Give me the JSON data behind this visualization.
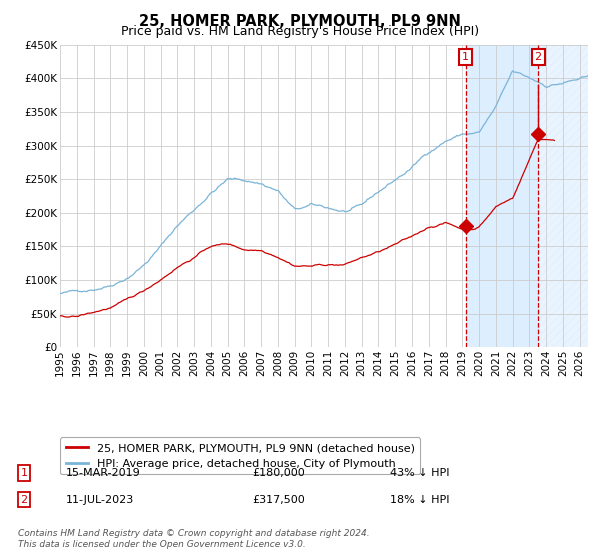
{
  "title": "25, HOMER PARK, PLYMOUTH, PL9 9NN",
  "subtitle": "Price paid vs. HM Land Registry's House Price Index (HPI)",
  "ylim": [
    0,
    450000
  ],
  "yticks": [
    0,
    50000,
    100000,
    150000,
    200000,
    250000,
    300000,
    350000,
    400000,
    450000
  ],
  "ytick_labels": [
    "£0",
    "£50K",
    "£100K",
    "£150K",
    "£200K",
    "£250K",
    "£300K",
    "£350K",
    "£400K",
    "£450K"
  ],
  "xlim_start": 1995.0,
  "xlim_end": 2026.5,
  "xtick_years": [
    1995,
    1996,
    1997,
    1998,
    1999,
    2000,
    2001,
    2002,
    2003,
    2004,
    2005,
    2006,
    2007,
    2008,
    2009,
    2010,
    2011,
    2012,
    2013,
    2014,
    2015,
    2016,
    2017,
    2018,
    2019,
    2020,
    2021,
    2022,
    2023,
    2024,
    2025,
    2026
  ],
  "hpi_color": "#7ab4d8",
  "price_color": "#cc0000",
  "shade_color": "#ddeeff",
  "hatch_color": "#aaccee",
  "transaction1_date": 2019.204,
  "transaction1_price": 180000,
  "transaction2_date": 2023.528,
  "transaction2_price": 317500,
  "legend_label_red": "25, HOMER PARK, PLYMOUTH, PL9 9NN (detached house)",
  "legend_label_blue": "HPI: Average price, detached house, City of Plymouth",
  "note1_box": "1",
  "note1_date": "15-MAR-2019",
  "note1_price": "£180,000",
  "note1_pct": "43% ↓ HPI",
  "note2_box": "2",
  "note2_date": "11-JUL-2023",
  "note2_price": "£317,500",
  "note2_pct": "18% ↓ HPI",
  "footer": "Contains HM Land Registry data © Crown copyright and database right 2024.\nThis data is licensed under the Open Government Licence v3.0.",
  "title_fontsize": 10.5,
  "subtitle_fontsize": 9,
  "tick_fontsize": 7.5,
  "legend_fontsize": 8,
  "note_fontsize": 8,
  "footer_fontsize": 6.5
}
